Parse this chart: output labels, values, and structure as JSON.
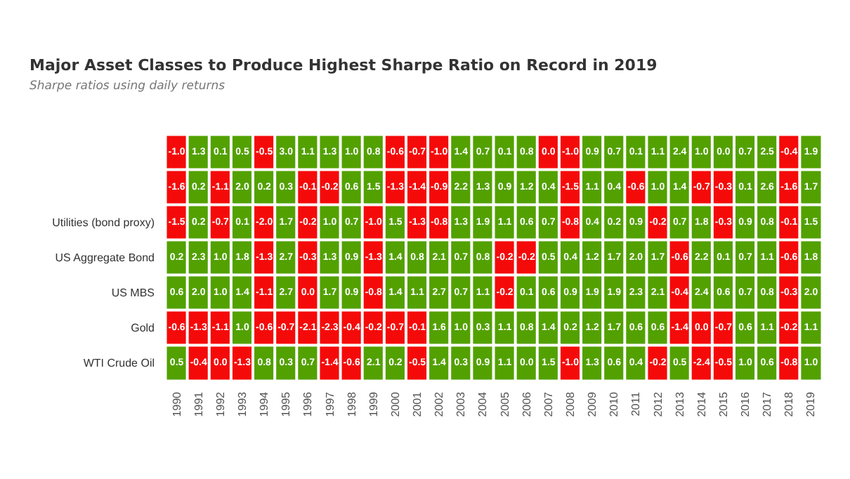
{
  "chart_data": {
    "type": "heatmap",
    "title": "Major Asset Classes to Produce Highest Sharpe Ratio on Record in 2019",
    "subtitle": "Sharpe ratios using daily returns",
    "data_labels": true,
    "cell_labels": [
      [
        "-1.0",
        "1.3",
        "0.1",
        "0.5",
        "-0.5",
        "3.0",
        "1.1",
        "1.3",
        "1.0",
        "0.8",
        "-0.6",
        "-0.7",
        "-1.0",
        "1.4",
        "0.7",
        "0.1",
        "0.8",
        "0.0",
        "-1.0",
        "0.9",
        "0.7",
        "0.1",
        "1.1",
        "2.4",
        "1.0",
        "0.0",
        "0.7",
        "2.5",
        "-0.4",
        "1.9"
      ],
      [
        "-1.6",
        "0.2",
        "-1.1",
        "2.0",
        "0.2",
        "0.3",
        "-0.1",
        "-0.2",
        "0.6",
        "1.5",
        "-1.3",
        "-1.4",
        "-0.9",
        "2.2",
        "1.3",
        "0.9",
        "1.2",
        "0.4",
        "-1.5",
        "1.1",
        "0.4",
        "-0.6",
        "1.0",
        "1.4",
        "-0.7",
        "-0.3",
        "0.1",
        "2.6",
        "-1.6",
        "1.7"
      ],
      [
        "-1.5",
        "0.2",
        "-0.7",
        "0.1",
        "-2.0",
        "1.7",
        "-0.2",
        "1.0",
        "0.7",
        "-1.0",
        "1.5",
        "-1.3",
        "-0.8",
        "1.3",
        "1.9",
        "1.1",
        "0.6",
        "0.7",
        "-0.8",
        "0.4",
        "0.2",
        "0.9",
        "-0.2",
        "0.7",
        "1.8",
        "-0.3",
        "0.9",
        "0.8",
        "-0.1",
        "1.5"
      ],
      [
        "0.2",
        "2.3",
        "1.0",
        "1.8",
        "-1.3",
        "2.7",
        "-0.3",
        "1.3",
        "0.9",
        "-1.3",
        "1.4",
        "0.8",
        "2.1",
        "0.7",
        "0.8",
        "-0.2",
        "-0.2",
        "0.5",
        "0.4",
        "1.2",
        "1.7",
        "2.0",
        "1.7",
        "-0.6",
        "2.2",
        "0.1",
        "0.7",
        "1.1",
        "-0.6",
        "1.8"
      ],
      [
        "0.6",
        "2.0",
        "1.0",
        "1.4",
        "-1.1",
        "2.7",
        "0.0",
        "1.7",
        "0.9",
        "-0.8",
        "1.4",
        "1.1",
        "2.7",
        "0.7",
        "1.1",
        "-0.2",
        "0.1",
        "0.6",
        "0.9",
        "1.9",
        "1.9",
        "2.3",
        "2.1",
        "-0.4",
        "2.4",
        "0.6",
        "0.7",
        "0.8",
        "-0.3",
        "2.0"
      ],
      [
        "-0.6",
        "-1.3",
        "-1.1",
        "1.0",
        "-0.6",
        "-0.7",
        "-2.1",
        "-2.3",
        "-0.4",
        "-0.2",
        "-0.7",
        "-0.1",
        "1.6",
        "1.0",
        "0.3",
        "1.1",
        "0.8",
        "1.4",
        "0.2",
        "1.2",
        "1.7",
        "0.6",
        "0.6",
        "-1.4",
        "0.0",
        "-0.7",
        "0.6",
        "1.1",
        "-0.2",
        "1.1"
      ],
      [
        "0.5",
        "-0.4",
        "0.0",
        "-1.3",
        "0.8",
        "0.3",
        "0.7",
        "-1.4",
        "-0.6",
        "2.1",
        "0.2",
        "-0.5",
        "1.4",
        "0.3",
        "0.9",
        "1.1",
        "0.0",
        "1.5",
        "-1.0",
        "1.3",
        "0.6",
        "0.4",
        "-0.2",
        "0.5",
        "-2.4",
        "-0.5",
        "1.0",
        "0.6",
        "-0.8",
        "1.0"
      ]
    ],
    "categories": [
      "1990",
      "1991",
      "1992",
      "1993",
      "1994",
      "1995",
      "1996",
      "1997",
      "1998",
      "1999",
      "2000",
      "2001",
      "2002",
      "2003",
      "2004",
      "2005",
      "2006",
      "2007",
      "2008",
      "2009",
      "2010",
      "2011",
      "2012",
      "2013",
      "2014",
      "2015",
      "2016",
      "2017",
      "2018",
      "2019"
    ],
    "y_categories": [
      null,
      null,
      "Utilities (bond proxy)",
      "US Aggregate Bond",
      "US MBS",
      "Gold",
      "WTI Crude Oil"
    ],
    "cells": [
      [
        -1.0,
        1.3,
        0.1,
        0.5,
        -0.5,
        3.0,
        1.1,
        1.3,
        1.0,
        0.8,
        -0.6,
        -0.7,
        -1.0,
        1.4,
        0.7,
        0.1,
        0.8,
        -0.0,
        -1.0,
        0.9,
        0.7,
        0.1,
        1.1,
        2.4,
        1.0,
        0.0,
        0.7,
        2.5,
        -0.4,
        1.9
      ],
      [
        -1.6,
        0.2,
        -1.1,
        2.0,
        0.2,
        0.3,
        -0.1,
        -0.2,
        0.6,
        1.5,
        -1.3,
        -1.4,
        -0.9,
        2.2,
        1.3,
        0.9,
        1.2,
        0.4,
        -1.5,
        1.1,
        0.4,
        -0.6,
        1.0,
        1.4,
        -0.7,
        -0.3,
        0.1,
        2.6,
        -1.6,
        1.7
      ],
      [
        -1.5,
        0.2,
        -0.7,
        0.1,
        -2.0,
        1.7,
        -0.2,
        1.0,
        0.7,
        -1.0,
        1.5,
        -1.3,
        -0.8,
        1.3,
        1.9,
        1.1,
        0.6,
        0.7,
        -0.8,
        0.4,
        0.2,
        0.9,
        -0.2,
        0.7,
        1.8,
        -0.3,
        0.9,
        0.8,
        -0.1,
        1.5
      ],
      [
        0.2,
        2.3,
        1.0,
        1.8,
        -1.3,
        2.7,
        -0.3,
        1.3,
        0.9,
        -1.3,
        1.4,
        0.8,
        2.1,
        0.7,
        0.8,
        -0.2,
        -0.2,
        0.5,
        0.4,
        1.2,
        1.7,
        2.0,
        1.7,
        -0.6,
        2.2,
        0.1,
        0.7,
        1.1,
        -0.6,
        1.8
      ],
      [
        0.6,
        2.0,
        1.0,
        1.4,
        -1.1,
        2.7,
        -0.0,
        1.7,
        0.9,
        -0.8,
        1.4,
        1.1,
        2.7,
        0.7,
        1.1,
        -0.2,
        0.1,
        0.6,
        0.9,
        1.9,
        1.9,
        2.3,
        2.1,
        -0.4,
        2.4,
        0.6,
        0.7,
        0.8,
        -0.3,
        2.0
      ],
      [
        -0.6,
        -1.3,
        -1.1,
        1.0,
        -0.6,
        -0.7,
        -2.1,
        -2.3,
        -0.4,
        -0.2,
        -0.7,
        -0.1,
        1.6,
        1.0,
        0.3,
        1.1,
        0.8,
        1.4,
        0.2,
        1.2,
        1.7,
        0.6,
        0.6,
        -1.4,
        -0.0,
        -0.7,
        0.6,
        1.1,
        -0.2,
        1.1
      ],
      [
        0.5,
        -0.4,
        -0.0,
        -1.3,
        0.8,
        0.3,
        0.7,
        -1.4,
        -0.6,
        2.1,
        0.2,
        -0.5,
        1.4,
        0.3,
        0.9,
        1.1,
        0.0,
        1.5,
        -1.0,
        1.3,
        0.6,
        0.4,
        -0.2,
        0.5,
        -2.4,
        -0.5,
        1.0,
        0.6,
        -0.8,
        1.0
      ]
    ]
  }
}
